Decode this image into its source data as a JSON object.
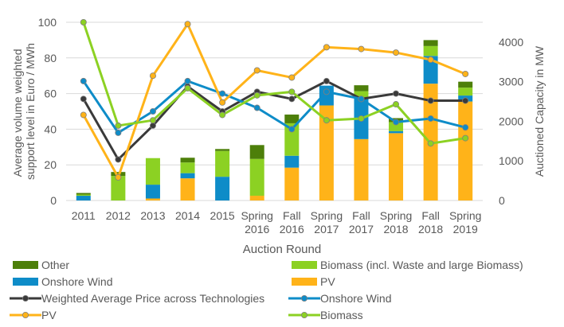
{
  "chart_data": {
    "type": "bar",
    "title": "",
    "xlabel": "Auction Round",
    "ylabel_left": "Average volume weighted support level in Euro / MWh",
    "ylabel_right": "Auctioned Capacity in MW",
    "categories": [
      [
        "2011"
      ],
      [
        "2012"
      ],
      [
        "2013"
      ],
      [
        "2014"
      ],
      [
        "2015"
      ],
      [
        "Spring",
        "2016"
      ],
      [
        "Fall",
        "2016"
      ],
      [
        "Spring",
        "2017"
      ],
      [
        "Fall",
        "2017"
      ],
      [
        "Spring",
        "2018"
      ],
      [
        "Fall",
        "2018"
      ],
      [
        "Spring",
        "2019"
      ]
    ],
    "y_left": {
      "min": 0,
      "max": 100,
      "ticks": [
        0,
        20,
        40,
        60,
        80,
        100
      ]
    },
    "y_right": {
      "min": 0,
      "max": 4500,
      "ticks": [
        0,
        1000,
        2000,
        3000,
        4000
      ]
    },
    "grid": true,
    "legend_position": "bottom",
    "bar_series": [
      {
        "name": "PV",
        "color": "#FFB319",
        "values": [
          0,
          0,
          50,
          560,
          0,
          120,
          830,
          2400,
          1550,
          1700,
          2950,
          2500
        ]
      },
      {
        "name": "Onshore Wind",
        "color": "#0E8CC8",
        "values": [
          120,
          0,
          350,
          130,
          600,
          0,
          300,
          500,
          1050,
          50,
          700,
          150
        ]
      },
      {
        "name": "Biomass (incl. Waste and large Biomass)",
        "color": "#8CD123",
        "values": [
          30,
          620,
          670,
          270,
          650,
          930,
          820,
          0,
          160,
          230,
          250,
          200
        ]
      },
      {
        "name": "Other",
        "color": "#4D7F0A",
        "values": [
          40,
          100,
          0,
          120,
          50,
          350,
          220,
          0,
          150,
          100,
          150,
          150
        ]
      }
    ],
    "line_series": [
      {
        "name": "Weighted Average Price across Technologies",
        "color": "#3A3A3A",
        "values": [
          57,
          23,
          42,
          64,
          50,
          61,
          57,
          67,
          57,
          60,
          56,
          56
        ]
      },
      {
        "name": "Onshore Wind",
        "color": "#0E8CC8",
        "values": [
          67,
          38,
          50,
          67,
          60,
          52,
          40,
          61,
          57,
          44,
          46,
          41
        ]
      },
      {
        "name": "PV",
        "color": "#FFB319",
        "values": [
          48,
          13,
          70,
          99,
          55,
          73,
          69,
          86,
          85,
          83,
          79,
          71
        ]
      },
      {
        "name": "Biomass",
        "color": "#8CD123",
        "values": [
          100,
          42,
          45,
          63,
          48,
          59,
          61,
          45,
          46,
          54,
          32,
          35
        ]
      }
    ],
    "legend": [
      {
        "label": "Other",
        "kind": "bar",
        "series": "bar_series.3"
      },
      {
        "label": "Biomass (incl. Waste and large Biomass)",
        "kind": "bar",
        "series": "bar_series.2"
      },
      {
        "label": "Onshore Wind",
        "kind": "bar",
        "series": "bar_series.1"
      },
      {
        "label": "PV",
        "kind": "bar",
        "series": "bar_series.0"
      },
      {
        "label": "Weighted Average Price across Technologies",
        "kind": "line",
        "series": "line_series.0"
      },
      {
        "label": "Onshore Wind",
        "kind": "line",
        "series": "line_series.1"
      },
      {
        "label": "PV",
        "kind": "line",
        "series": "line_series.2"
      },
      {
        "label": "Biomass",
        "kind": "line",
        "series": "line_series.3"
      }
    ]
  }
}
